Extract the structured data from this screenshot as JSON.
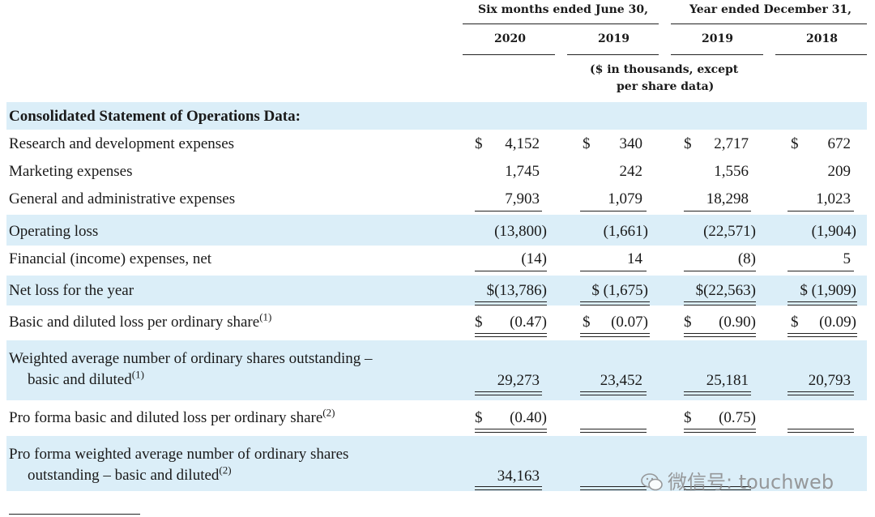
{
  "header": {
    "group_six_months": "Six months ended June 30,",
    "group_year": "Year ended December 31,",
    "years": [
      "2020",
      "2019",
      "2019",
      "2018"
    ],
    "unit_line1": "($ in thousands, except",
    "unit_line2": "per share data)"
  },
  "section_title": "Consolidated Statement of Operations Data:",
  "rows": [
    {
      "label": "Research and development expenses",
      "values": [
        "4,152",
        "340",
        "2,717",
        "672"
      ],
      "dollar": [
        "$",
        "$",
        "$",
        "$"
      ]
    },
    {
      "label": "Marketing expenses",
      "values": [
        "1,745",
        "242",
        "1,556",
        "209"
      ]
    },
    {
      "label": "General and administrative expenses",
      "values": [
        "7,903",
        "1,079",
        "18,298",
        "1,023"
      ]
    },
    {
      "label": "Operating loss",
      "values": [
        "(13,800)",
        "(1,661)",
        "(22,571)",
        "(1,904)"
      ]
    },
    {
      "label": "Financial (income) expenses, net",
      "values": [
        "(14)",
        "14",
        "(8)",
        "5"
      ]
    },
    {
      "label": "Net loss for the year",
      "values": [
        "$(13,786)",
        "$ (1,675)",
        "$(22,563)",
        "$ (1,909)"
      ]
    },
    {
      "label": "Basic and diluted loss per ordinary share",
      "sup": "(1)",
      "values": [
        "(0.47)",
        "(0.07)",
        "(0.90)",
        "(0.09)"
      ],
      "dollar": [
        "$",
        "$",
        "$",
        "$"
      ]
    },
    {
      "label_line1": "Weighted average number of ordinary shares outstanding –",
      "label_line2": "basic and diluted",
      "sup": "(1)",
      "values": [
        "29,273",
        "23,452",
        "25,181",
        "20,793"
      ]
    },
    {
      "label": "Pro forma basic and diluted loss per ordinary share",
      "sup": "(2)",
      "values": [
        "(0.40)",
        "",
        "(0.75)",
        ""
      ],
      "dollar": [
        "$",
        "",
        "$",
        ""
      ]
    },
    {
      "label_line1": "Pro forma weighted average number of ordinary shares",
      "label_line2": "outstanding – basic and diluted",
      "sup": "(2)",
      "values": [
        "34,163",
        "",
        "",
        ""
      ]
    }
  ],
  "watermark": "微信号: touchweb"
}
